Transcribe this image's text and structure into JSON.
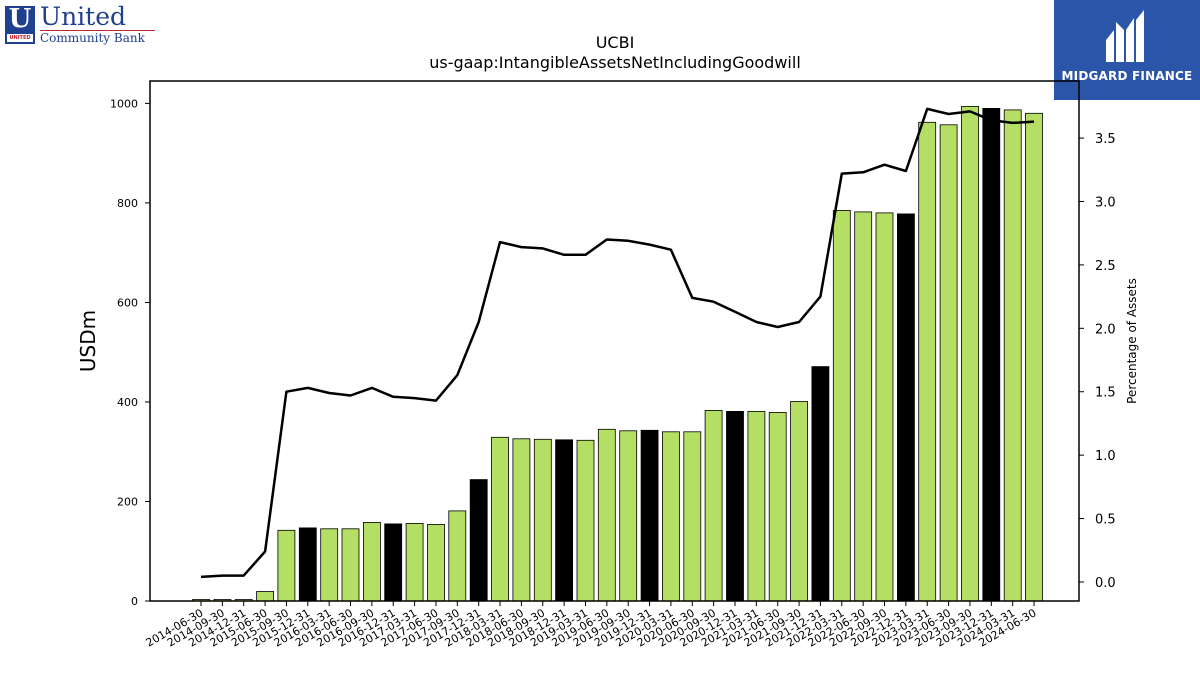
{
  "logos": {
    "left_mark": "U",
    "left_mark_sub": "UNITED",
    "left_name": "United",
    "left_tagline": "Community Bank",
    "right_brand": "MIDGARD FINANCE",
    "right_icon": "midgard-m-logo-icon"
  },
  "chart_data": {
    "type": "bar",
    "title": "UCBI",
    "subtitle": "us-gaap:IntangibleAssetsNetIncludingGoodwill",
    "ylabel": "USDm",
    "y2label": "Percentage of Assets",
    "ylim": [
      0,
      1045
    ],
    "y2lim": [
      -0.15,
      3.95
    ],
    "yticks": [
      0,
      200,
      400,
      600,
      800,
      1000
    ],
    "y2ticks": [
      0.0,
      0.5,
      1.0,
      1.5,
      2.0,
      2.5,
      3.0,
      3.5
    ],
    "categories": [
      "2014-06-30",
      "2014-09-30",
      "2014-12-31",
      "2015-06-30",
      "2015-09-30",
      "2015-12-31",
      "2016-03-31",
      "2016-06-30",
      "2016-09-30",
      "2016-12-31",
      "2017-03-31",
      "2017-06-30",
      "2017-09-30",
      "2017-12-31",
      "2018-03-31",
      "2018-06-30",
      "2018-09-30",
      "2018-12-31",
      "2019-03-31",
      "2019-06-30",
      "2019-09-30",
      "2019-12-31",
      "2020-03-31",
      "2020-06-30",
      "2020-09-30",
      "2020-12-31",
      "2021-03-31",
      "2021-06-30",
      "2021-09-30",
      "2021-12-31",
      "2022-03-31",
      "2022-06-30",
      "2022-09-30",
      "2022-12-31",
      "2023-03-31",
      "2023-06-30",
      "2023-09-30",
      "2023-12-31",
      "2024-03-31",
      "2024-06-30"
    ],
    "colors": {
      "normal": "#b5de64",
      "highlight": "#000000"
    },
    "series": [
      {
        "type": "bar",
        "axis": "left",
        "values": [
          3,
          3,
          3,
          19,
          142,
          147,
          145,
          145,
          158,
          155,
          156,
          154,
          181,
          244,
          329,
          326,
          325,
          324,
          323,
          345,
          342,
          343,
          340,
          340,
          383,
          381,
          381,
          379,
          401,
          471,
          785,
          782,
          780,
          778,
          962,
          957,
          994,
          990,
          987,
          980
        ],
        "highlighted": [
          false,
          false,
          false,
          false,
          false,
          true,
          false,
          false,
          false,
          true,
          false,
          false,
          false,
          true,
          false,
          false,
          false,
          true,
          false,
          false,
          false,
          true,
          false,
          false,
          false,
          true,
          false,
          false,
          false,
          true,
          false,
          false,
          false,
          true,
          false,
          false,
          false,
          true,
          false,
          false
        ]
      },
      {
        "type": "line",
        "axis": "right",
        "color": "#000000",
        "values": [
          0.04,
          0.05,
          0.05,
          0.24,
          1.5,
          1.53,
          1.49,
          1.47,
          1.53,
          1.46,
          1.45,
          1.43,
          1.63,
          2.05,
          2.68,
          2.64,
          2.63,
          2.58,
          2.58,
          2.7,
          2.69,
          2.66,
          2.62,
          2.24,
          2.21,
          2.13,
          2.05,
          2.01,
          2.05,
          2.25,
          3.22,
          3.23,
          3.29,
          3.24,
          3.73,
          3.69,
          3.71,
          3.64,
          3.62,
          3.63
        ]
      }
    ]
  }
}
